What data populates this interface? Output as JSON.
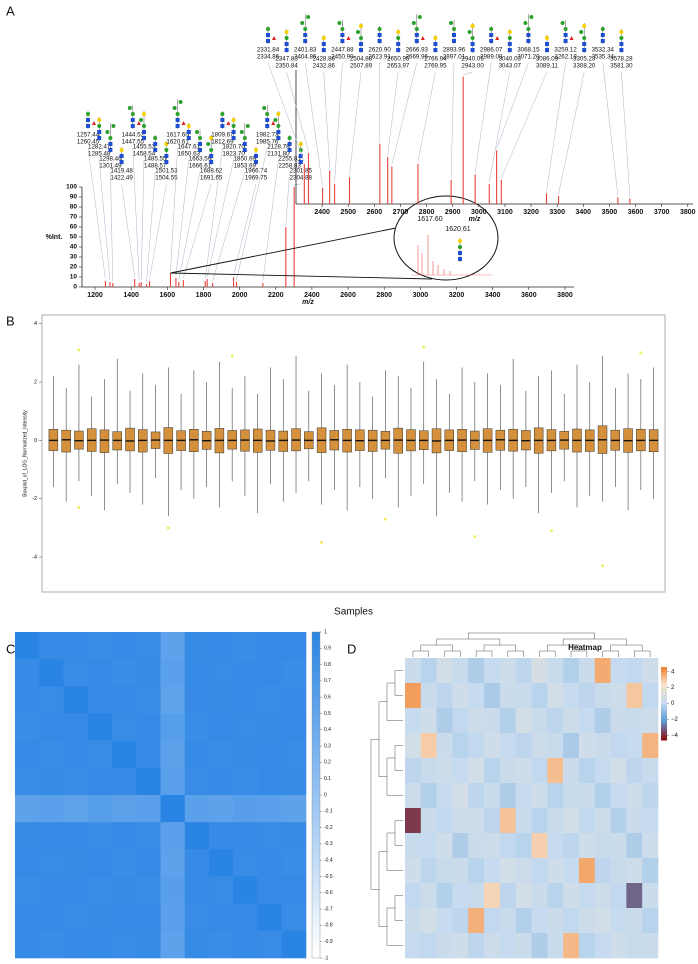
{
  "chart_data": [
    {
      "type": "spectrum",
      "panel": "A",
      "xlabel": "m/z",
      "ylabel": "%Int.",
      "xlim": [
        1128,
        3850
      ],
      "xticks": [
        1200,
        1400,
        1600,
        1800,
        2000,
        2200,
        2400,
        2600,
        2800,
        3000,
        3200,
        3400,
        3600,
        3800
      ],
      "ylim": [
        0,
        100
      ],
      "yticks": [
        0,
        10,
        20,
        30,
        40,
        50,
        60,
        70,
        80,
        90,
        100
      ],
      "color": "#e8413c",
      "x": [
        1257.44,
        1282.47,
        1298.46,
        1419.48,
        1444.52,
        1455.53,
        1485.55,
        1501.53,
        1617.6,
        1647.61,
        1663.59,
        1688.62,
        1809.67,
        1820.7,
        1850.69,
        1966.74,
        1982.73,
        2128.78,
        2255.81,
        2301.85
      ],
      "values": [
        6,
        5,
        4,
        8,
        4,
        5,
        3,
        6,
        14,
        9,
        5,
        7,
        6,
        8,
        4,
        10,
        5,
        4,
        60,
        100
      ],
      "peak_labels": [
        [
          "1257.44",
          "1260.45"
        ],
        [
          "1282.47",
          "1285.48"
        ],
        [
          "1298.46",
          "1301.49"
        ],
        [
          "1419.48",
          "1422.49"
        ],
        [
          "1444.52",
          "1447.55"
        ],
        [
          "1455.53",
          "1458.54"
        ],
        [
          "1485.55",
          "1488.57"
        ],
        [
          "1501.53",
          "1504.55"
        ],
        [
          "1617.60",
          "1620.61"
        ],
        [
          "1647.61",
          "1650.63"
        ],
        [
          "1663.59",
          "1666.61"
        ],
        [
          "1688.62",
          "1691.65"
        ],
        [
          "1809.67",
          "1812.69"
        ],
        [
          "1820.70",
          "1823.70"
        ],
        [
          "1850.69",
          "1853.69"
        ],
        [
          "1966.74",
          "1969.75"
        ],
        [
          "1982.73",
          "1985.76"
        ],
        [
          "2128.78",
          "2131.80"
        ],
        [
          "2255.81",
          "2258.83"
        ],
        [
          "2301.85",
          "2304.88"
        ]
      ],
      "zoom_labels": [
        "1617.60",
        "1620.61"
      ]
    },
    {
      "type": "spectrum",
      "xlabel": "m/z",
      "xlim": [
        2300,
        3820
      ],
      "xticks": [
        2400,
        2500,
        2600,
        2700,
        2800,
        2900,
        3000,
        3100,
        3200,
        3300,
        3400,
        3500,
        3600,
        3700,
        3800
      ],
      "ylim": [
        0,
        100
      ],
      "color": "#e8413c",
      "x": [
        2331.84,
        2347.83,
        2401.83,
        2428.86,
        2447.88,
        2504.88,
        2620.9,
        2650.95,
        2666.93,
        2766.94,
        2893.96,
        2940.05,
        2986.07,
        3040.03,
        3068.15,
        3086.09,
        3259.12,
        3305.23,
        3532.34,
        3578.28
      ],
      "values": [
        30,
        38,
        12,
        25,
        15,
        20,
        45,
        35,
        28,
        30,
        18,
        95,
        22,
        15,
        40,
        18,
        8,
        6,
        5,
        4
      ],
      "peak_labels": [
        [
          "2331.84",
          "2334.86"
        ],
        [
          "2347.83",
          "2350.84"
        ],
        [
          "2401.83",
          "2404.86"
        ],
        [
          "2428.86",
          "2432.86"
        ],
        [
          "2447.88",
          "2450.90"
        ],
        [
          "2504.88",
          "2507.89"
        ],
        [
          "2620.90",
          "2623.91"
        ],
        [
          "2650.95",
          "2653.97"
        ],
        [
          "2666.93",
          "2669.96"
        ],
        [
          "2766.94",
          "2769.95"
        ],
        [
          "2893.96",
          "2897.01"
        ],
        [
          "2940.05",
          "2943.00"
        ],
        [
          "2986.07",
          "2989.08"
        ],
        [
          "3040.03",
          "3043.07"
        ],
        [
          "3068.15",
          "3071.20"
        ],
        [
          "3086.09",
          "3089.11"
        ],
        [
          "3259.12",
          "3262.18"
        ],
        [
          "3305.23",
          "3308.20"
        ],
        [
          "3532.34",
          "3535.34"
        ],
        [
          "3578.28",
          "3581.30"
        ]
      ]
    },
    {
      "type": "box",
      "panel": "B",
      "xlabel": "Samples",
      "ylabel": "Boxplot_of_LOG_Normalized_Intensity",
      "ylim": [
        -5.2,
        4.3
      ],
      "yticks": [
        -4,
        -2,
        0,
        2,
        4
      ],
      "color": "#d4903a",
      "outlier_color": "#eeee66",
      "values": [
        [
          -1.6,
          -0.35,
          0.0,
          0.38,
          2.2
        ],
        [
          -2.1,
          -0.4,
          0.02,
          0.35,
          1.8
        ],
        [
          -1.4,
          -0.3,
          -0.01,
          0.32,
          2.6
        ],
        [
          -1.9,
          -0.38,
          0.0,
          0.4,
          1.5
        ],
        [
          -2.4,
          -0.42,
          0.01,
          0.36,
          2.1
        ],
        [
          -1.5,
          -0.33,
          0.0,
          0.3,
          2.8
        ],
        [
          -1.8,
          -0.36,
          -0.02,
          0.42,
          1.7
        ],
        [
          -2.2,
          -0.4,
          0.0,
          0.37,
          2.3
        ],
        [
          -1.3,
          -0.28,
          0.01,
          0.29,
          1.9
        ],
        [
          -2.6,
          -0.45,
          0.0,
          0.44,
          2.5
        ],
        [
          -1.7,
          -0.35,
          0.0,
          0.33,
          1.6
        ],
        [
          -2.0,
          -0.39,
          0.02,
          0.38,
          2.4
        ],
        [
          -1.6,
          -0.31,
          -0.01,
          0.31,
          2.0
        ],
        [
          -2.3,
          -0.43,
          0.0,
          0.41,
          2.7
        ],
        [
          -1.4,
          -0.3,
          0.0,
          0.34,
          1.8
        ],
        [
          -1.9,
          -0.37,
          0.01,
          0.36,
          2.2
        ],
        [
          -2.5,
          -0.41,
          0.0,
          0.39,
          1.6
        ],
        [
          -1.5,
          -0.34,
          -0.02,
          0.35,
          2.5
        ],
        [
          -2.1,
          -0.38,
          0.0,
          0.32,
          2.1
        ],
        [
          -1.8,
          -0.36,
          0.01,
          0.4,
          2.9
        ],
        [
          -1.4,
          -0.29,
          0.0,
          0.3,
          1.7
        ],
        [
          -2.2,
          -0.42,
          0.0,
          0.43,
          2.3
        ],
        [
          -1.7,
          -0.33,
          0.02,
          0.34,
          1.9
        ],
        [
          -2.4,
          -0.4,
          0.0,
          0.38,
          2.6
        ],
        [
          -1.6,
          -0.35,
          -0.01,
          0.36,
          2.0
        ],
        [
          -2.0,
          -0.38,
          0.0,
          0.35,
          1.5
        ],
        [
          -1.3,
          -0.3,
          0.0,
          0.31,
          2.4
        ],
        [
          -2.3,
          -0.44,
          0.01,
          0.42,
          2.2
        ],
        [
          -1.9,
          -0.36,
          0.0,
          0.37,
          1.8
        ],
        [
          -1.5,
          -0.32,
          0.0,
          0.33,
          2.7
        ],
        [
          -2.6,
          -0.43,
          -0.02,
          0.4,
          2.1
        ],
        [
          -1.8,
          -0.35,
          0.0,
          0.36,
          1.6
        ],
        [
          -2.1,
          -0.39,
          0.01,
          0.38,
          2.5
        ],
        [
          -1.4,
          -0.31,
          0.0,
          0.32,
          2.0
        ],
        [
          -2.2,
          -0.41,
          0.0,
          0.4,
          2.3
        ],
        [
          -1.7,
          -0.34,
          0.02,
          0.35,
          1.9
        ],
        [
          -2.0,
          -0.37,
          0.0,
          0.38,
          2.8
        ],
        [
          -1.6,
          -0.33,
          -0.01,
          0.34,
          1.7
        ],
        [
          -2.5,
          -0.44,
          0.0,
          0.43,
          2.2
        ],
        [
          -1.8,
          -0.36,
          0.0,
          0.37,
          2.4
        ],
        [
          -1.4,
          -0.3,
          0.01,
          0.31,
          1.6
        ],
        [
          -2.3,
          -0.4,
          0.0,
          0.39,
          2.6
        ],
        [
          -1.9,
          -0.38,
          0.0,
          0.36,
          2.0
        ],
        [
          -2.1,
          -0.45,
          0.02,
          0.5,
          2.9
        ],
        [
          -1.6,
          -0.34,
          0.0,
          0.35,
          1.8
        ],
        [
          -2.4,
          -0.41,
          -0.01,
          0.4,
          2.3
        ],
        [
          -1.7,
          -0.36,
          0.0,
          0.38,
          2.1
        ],
        [
          -2.0,
          -0.39,
          0.0,
          0.37,
          2.5
        ]
      ],
      "outliers": [
        [],
        [],
        [
          3.1,
          -2.3
        ],
        [],
        [],
        [],
        [],
        [],
        [],
        [
          -3.0
        ],
        [],
        [],
        [],
        [],
        [
          2.9
        ],
        [],
        [],
        [],
        [],
        [],
        [],
        [
          -3.5
        ],
        [],
        [],
        [],
        [],
        [
          -2.7
        ],
        [],
        [],
        [
          3.2
        ],
        [],
        [],
        [],
        [
          -3.3
        ],
        [],
        [],
        [],
        [],
        [],
        [
          -3.1
        ],
        [],
        [],
        [],
        [
          -4.3
        ],
        [],
        [],
        [
          3.0
        ],
        []
      ]
    },
    {
      "type": "matrix",
      "panel": "C",
      "clim": [
        -1,
        1
      ],
      "cticks": [
        1,
        0.9,
        0.8,
        0.7,
        0.6,
        0.5,
        0.4,
        0.3,
        0.2,
        0.1,
        0,
        -0.1,
        -0.2,
        -0.3,
        -0.4,
        -0.5,
        -0.6,
        -0.7,
        -0.8,
        -0.9,
        -1
      ],
      "colors": [
        "#ffffff",
        "#2a84e4"
      ],
      "values": [
        [
          1,
          0.88,
          0.9,
          0.86,
          0.91,
          0.87,
          0.52,
          0.89,
          0.9,
          0.85,
          0.88,
          0.9
        ],
        [
          0.88,
          1,
          0.87,
          0.9,
          0.86,
          0.89,
          0.55,
          0.9,
          0.87,
          0.88,
          0.91,
          0.86
        ],
        [
          0.9,
          0.87,
          1,
          0.88,
          0.9,
          0.85,
          0.5,
          0.88,
          0.89,
          0.9,
          0.86,
          0.88
        ],
        [
          0.86,
          0.9,
          0.88,
          1,
          0.87,
          0.9,
          0.58,
          0.86,
          0.9,
          0.87,
          0.89,
          0.9
        ],
        [
          0.91,
          0.86,
          0.9,
          0.87,
          1,
          0.88,
          0.53,
          0.9,
          0.86,
          0.89,
          0.88,
          0.87
        ],
        [
          0.87,
          0.89,
          0.85,
          0.9,
          0.88,
          1,
          0.56,
          0.87,
          0.9,
          0.86,
          0.9,
          0.89
        ],
        [
          0.52,
          0.55,
          0.5,
          0.58,
          0.53,
          0.56,
          1,
          0.54,
          0.51,
          0.57,
          0.55,
          0.52
        ],
        [
          0.89,
          0.9,
          0.88,
          0.86,
          0.9,
          0.87,
          0.54,
          1,
          0.88,
          0.9,
          0.87,
          0.89
        ],
        [
          0.9,
          0.87,
          0.89,
          0.9,
          0.86,
          0.9,
          0.51,
          0.88,
          1,
          0.87,
          0.9,
          0.86
        ],
        [
          0.85,
          0.88,
          0.9,
          0.87,
          0.89,
          0.86,
          0.57,
          0.9,
          0.87,
          1,
          0.88,
          0.9
        ],
        [
          0.88,
          0.91,
          0.86,
          0.89,
          0.88,
          0.9,
          0.55,
          0.87,
          0.9,
          0.88,
          1,
          0.87
        ],
        [
          0.9,
          0.86,
          0.88,
          0.9,
          0.87,
          0.89,
          0.52,
          0.89,
          0.86,
          0.9,
          0.87,
          1
        ]
      ]
    },
    {
      "type": "heatmap",
      "panel": "D",
      "title": "Heatmap",
      "clim": [
        -4.6,
        4.6
      ],
      "cticks": [
        4,
        2,
        0,
        {
          "value": -2,
          "label": "−2"
        },
        {
          "value": -4,
          "label": "−4"
        }
      ],
      "colors": [
        "#8b1010",
        "#5b9bd5",
        "#c6dbef",
        "#f7e3cc",
        "#f07820"
      ],
      "values": [
        [
          0.2,
          -0.3,
          0.5,
          0.1,
          -0.5,
          0.0,
          0.3,
          -0.2,
          0.8,
          0.1,
          -0.4,
          0.2,
          3.5,
          0.0,
          -0.1,
          0.4
        ],
        [
          3.8,
          0.1,
          -0.2,
          0.4,
          0.0,
          -0.6,
          0.2,
          0.1,
          -0.3,
          0.5,
          0.0,
          -0.2,
          0.1,
          0.3,
          2.9,
          -0.1
        ],
        [
          0.0,
          0.4,
          -0.5,
          -0.1,
          0.3,
          0.2,
          -0.4,
          0.6,
          0.1,
          -0.2,
          0.3,
          0.0,
          -0.5,
          0.2,
          0.1,
          0.3
        ],
        [
          0.5,
          2.8,
          0.2,
          -0.3,
          -0.1,
          0.4,
          0.0,
          -0.2,
          0.3,
          0.1,
          -0.6,
          0.4,
          0.2,
          -0.1,
          0.0,
          3.3
        ],
        [
          -0.2,
          0.1,
          0.3,
          0.0,
          0.5,
          -0.3,
          0.2,
          0.4,
          -0.1,
          3.1,
          0.2,
          -0.3,
          0.0,
          0.5,
          -0.2,
          0.1
        ],
        [
          0.3,
          -0.4,
          0.0,
          0.6,
          -0.2,
          0.1,
          -0.5,
          0.0,
          0.4,
          -0.3,
          0.1,
          0.2,
          -0.4,
          0.0,
          0.3,
          -0.2
        ],
        [
          -3.9,
          0.2,
          -0.1,
          0.3,
          0.4,
          -0.2,
          3.0,
          0.1,
          -0.3,
          0.2,
          0.5,
          -0.1,
          0.3,
          -0.4,
          0.2,
          0.0
        ],
        [
          0.1,
          0.0,
          0.4,
          -0.5,
          0.2,
          0.3,
          -0.1,
          -0.3,
          2.7,
          0.0,
          -0.2,
          0.4,
          0.1,
          0.2,
          -0.5,
          0.3
        ],
        [
          0.4,
          -0.2,
          0.1,
          0.2,
          -0.3,
          0.0,
          0.5,
          0.3,
          -0.1,
          0.4,
          0.0,
          3.6,
          -0.2,
          0.1,
          0.3,
          -0.4
        ],
        [
          -0.1,
          0.3,
          -0.4,
          0.0,
          0.1,
          2.6,
          -0.2,
          0.5,
          0.2,
          -0.3,
          0.4,
          0.0,
          0.3,
          -0.1,
          -3.2,
          0.2
        ],
        [
          0.2,
          0.5,
          0.0,
          -0.2,
          3.4,
          -0.1,
          0.1,
          -0.4,
          0.0,
          0.2,
          -0.1,
          0.3,
          0.5,
          0.0,
          0.2,
          -0.3
        ],
        [
          0.0,
          -0.1,
          0.2,
          0.4,
          -0.2,
          0.3,
          0.0,
          0.2,
          -0.5,
          0.1,
          3.2,
          -0.3,
          0.0,
          0.4,
          0.1,
          0.2
        ]
      ]
    }
  ]
}
